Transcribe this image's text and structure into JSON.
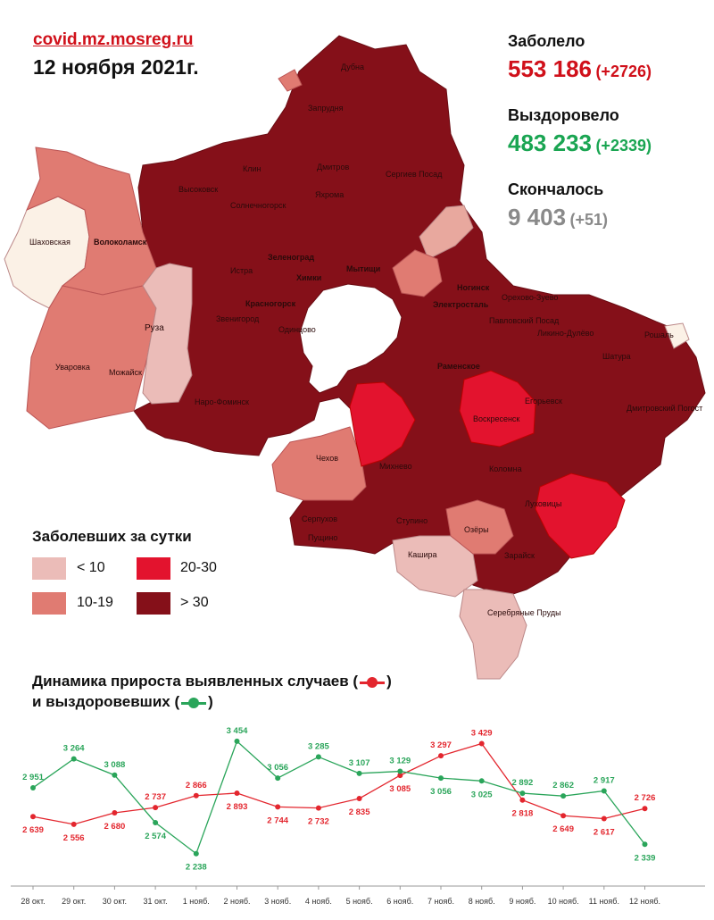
{
  "header": {
    "source": "covid.mz.mosreg.ru",
    "date": "12 ноября 2021г."
  },
  "stats": {
    "infected": {
      "label": "Заболело",
      "value": "553 186",
      "delta": "(+2726)",
      "color": "#d0101a"
    },
    "recovered": {
      "label": "Выздоровело",
      "value": "483 233",
      "delta": "(+2339)",
      "color": "#1aa552"
    },
    "deaths": {
      "label": "Скончалось",
      "value": "9 403",
      "delta": "(+51)",
      "color": "#8a8a8a"
    }
  },
  "legend": {
    "title": "Заболевших за сутки",
    "items": [
      {
        "label": "< 10",
        "color": "#ebbcb8"
      },
      {
        "label": "20-30",
        "color": "#e3132e"
      },
      {
        "label": "10-19",
        "color": "#e07b72"
      },
      {
        "label": "> 30",
        "color": "#851019"
      }
    ]
  },
  "map": {
    "cities": [
      "Дубна",
      "Запрудня",
      "Клин",
      "Дмитров",
      "Сергиев Посад",
      "Высоковск",
      "Солнечногорск",
      "Яхрома",
      "Шаховская",
      "Волоколамск",
      "Зеленоград",
      "Мытищи",
      "Химки",
      "Истра",
      "Ногинск",
      "Орехово-Зуево",
      "Электросталь",
      "Красногорск",
      "Звенигород",
      "Одинцово",
      "Павловский Посад",
      "Ликино-Дулёво",
      "Рошаль",
      "Руза",
      "Шатура",
      "Уваровка",
      "Можайск",
      "Раменское",
      "Егорьевск",
      "Наро-Фоминск",
      "Дмитровский Погост",
      "Воскресенск",
      "Чехов",
      "Михнево",
      "Коломна",
      "Луховицы",
      "Серпухов",
      "Ступино",
      "Озёры",
      "Пущино",
      "Зарайск",
      "Кашира",
      "Серебряные Пруды"
    ]
  },
  "dynamics": {
    "title_line1": "Динамика прироста выявленных случаев (",
    "title_line1_end": ")",
    "title_line2": "и выздоровевших (",
    "title_line2_end": ")"
  },
  "chart_data": {
    "type": "line",
    "categories": [
      "28 окт.",
      "29 окт.",
      "30 окт.",
      "31 окт.",
      "1 нояб.",
      "2 нояб.",
      "3 нояб.",
      "4 нояб.",
      "5 нояб.",
      "6 нояб.",
      "7 нояб.",
      "8 нояб.",
      "9 нояб.",
      "10 нояб.",
      "11 нояб.",
      "12 нояб."
    ],
    "series": [
      {
        "color": "#e3262e",
        "values": [
          2639,
          2556,
          2680,
          2737,
          2866,
          2893,
          2744,
          2732,
          2835,
          3085,
          3297,
          3429,
          2818,
          2649,
          2617,
          2726
        ],
        "labels": [
          "2 639",
          "2 556",
          "2 680",
          "2 737",
          "2 866",
          "2 893",
          "2 744",
          "2 732",
          "2 835",
          "3 085",
          "3 297",
          "3 429",
          "2 818",
          "2 649",
          "2 617",
          "2 726"
        ]
      },
      {
        "color": "#2aa55a",
        "values": [
          2951,
          3264,
          3088,
          2574,
          2238,
          3454,
          3056,
          3285,
          3107,
          3129,
          3056,
          3025,
          2892,
          2862,
          2917,
          2339
        ],
        "labels": [
          "2 951",
          "3 264",
          "3 088",
          "2 574",
          "2 238",
          "3 454",
          "3 056",
          "3 285",
          "3 107",
          "3 129",
          "3 056",
          "3 025",
          "2 892",
          "2 862",
          "2 917",
          "2 339"
        ]
      }
    ],
    "ylim": [
      2100,
      3550
    ]
  }
}
